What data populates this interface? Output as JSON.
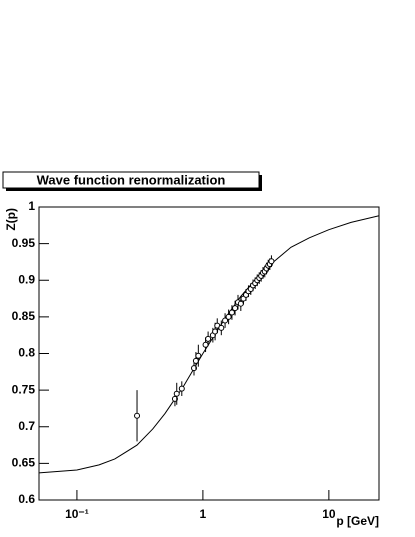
{
  "chart_data": {
    "type": "scatter",
    "title": "Wave function renormalization",
    "xlabel": "p [GeV]",
    "ylabel": "Z(p)",
    "xscale": "log",
    "xlim": [
      0.05,
      25
    ],
    "ylim": [
      0.6,
      1
    ],
    "xticks": [
      {
        "value": 0.1,
        "label": "10⁻¹"
      },
      1,
      10
    ],
    "yticks": [
      0.6,
      0.65,
      0.7,
      0.75,
      0.8,
      0.85,
      0.9,
      0.95,
      1
    ],
    "color": "#000000",
    "points": {
      "x": [
        0.3,
        0.6,
        0.62,
        0.68,
        0.85,
        0.88,
        0.92,
        1.05,
        1.1,
        1.2,
        1.25,
        1.3,
        1.4,
        1.5,
        1.6,
        1.7,
        1.8,
        1.9,
        2.0,
        2.1,
        2.2,
        2.3,
        2.4,
        2.5,
        2.6,
        2.7,
        2.8,
        2.9,
        3.0,
        3.1,
        3.2,
        3.3,
        3.4,
        3.5
      ],
      "values": [
        0.715,
        0.738,
        0.745,
        0.752,
        0.78,
        0.79,
        0.797,
        0.812,
        0.82,
        0.825,
        0.83,
        0.838,
        0.835,
        0.845,
        0.85,
        0.856,
        0.862,
        0.87,
        0.868,
        0.875,
        0.88,
        0.885,
        0.888,
        0.893,
        0.896,
        0.9,
        0.903,
        0.906,
        0.91,
        0.912,
        0.916,
        0.92,
        0.922,
        0.926
      ],
      "errors": [
        0.035,
        0.01,
        0.015,
        0.01,
        0.01,
        0.012,
        0.015,
        0.01,
        0.01,
        0.01,
        0.012,
        0.01,
        0.01,
        0.01,
        0.01,
        0.01,
        0.01,
        0.01,
        0.01,
        0.008,
        0.008,
        0.008,
        0.008,
        0.008,
        0.008,
        0.008,
        0.008,
        0.008,
        0.008,
        0.008,
        0.008,
        0.008,
        0.008,
        0.008
      ]
    },
    "curve": {
      "x": [
        0.05,
        0.1,
        0.15,
        0.2,
        0.3,
        0.4,
        0.5,
        0.7,
        1,
        1.5,
        2,
        3,
        5,
        7,
        10,
        15,
        25
      ],
      "values": [
        0.637,
        0.641,
        0.648,
        0.656,
        0.675,
        0.697,
        0.718,
        0.755,
        0.8,
        0.848,
        0.878,
        0.913,
        0.945,
        0.958,
        0.969,
        0.979,
        0.988
      ]
    }
  }
}
